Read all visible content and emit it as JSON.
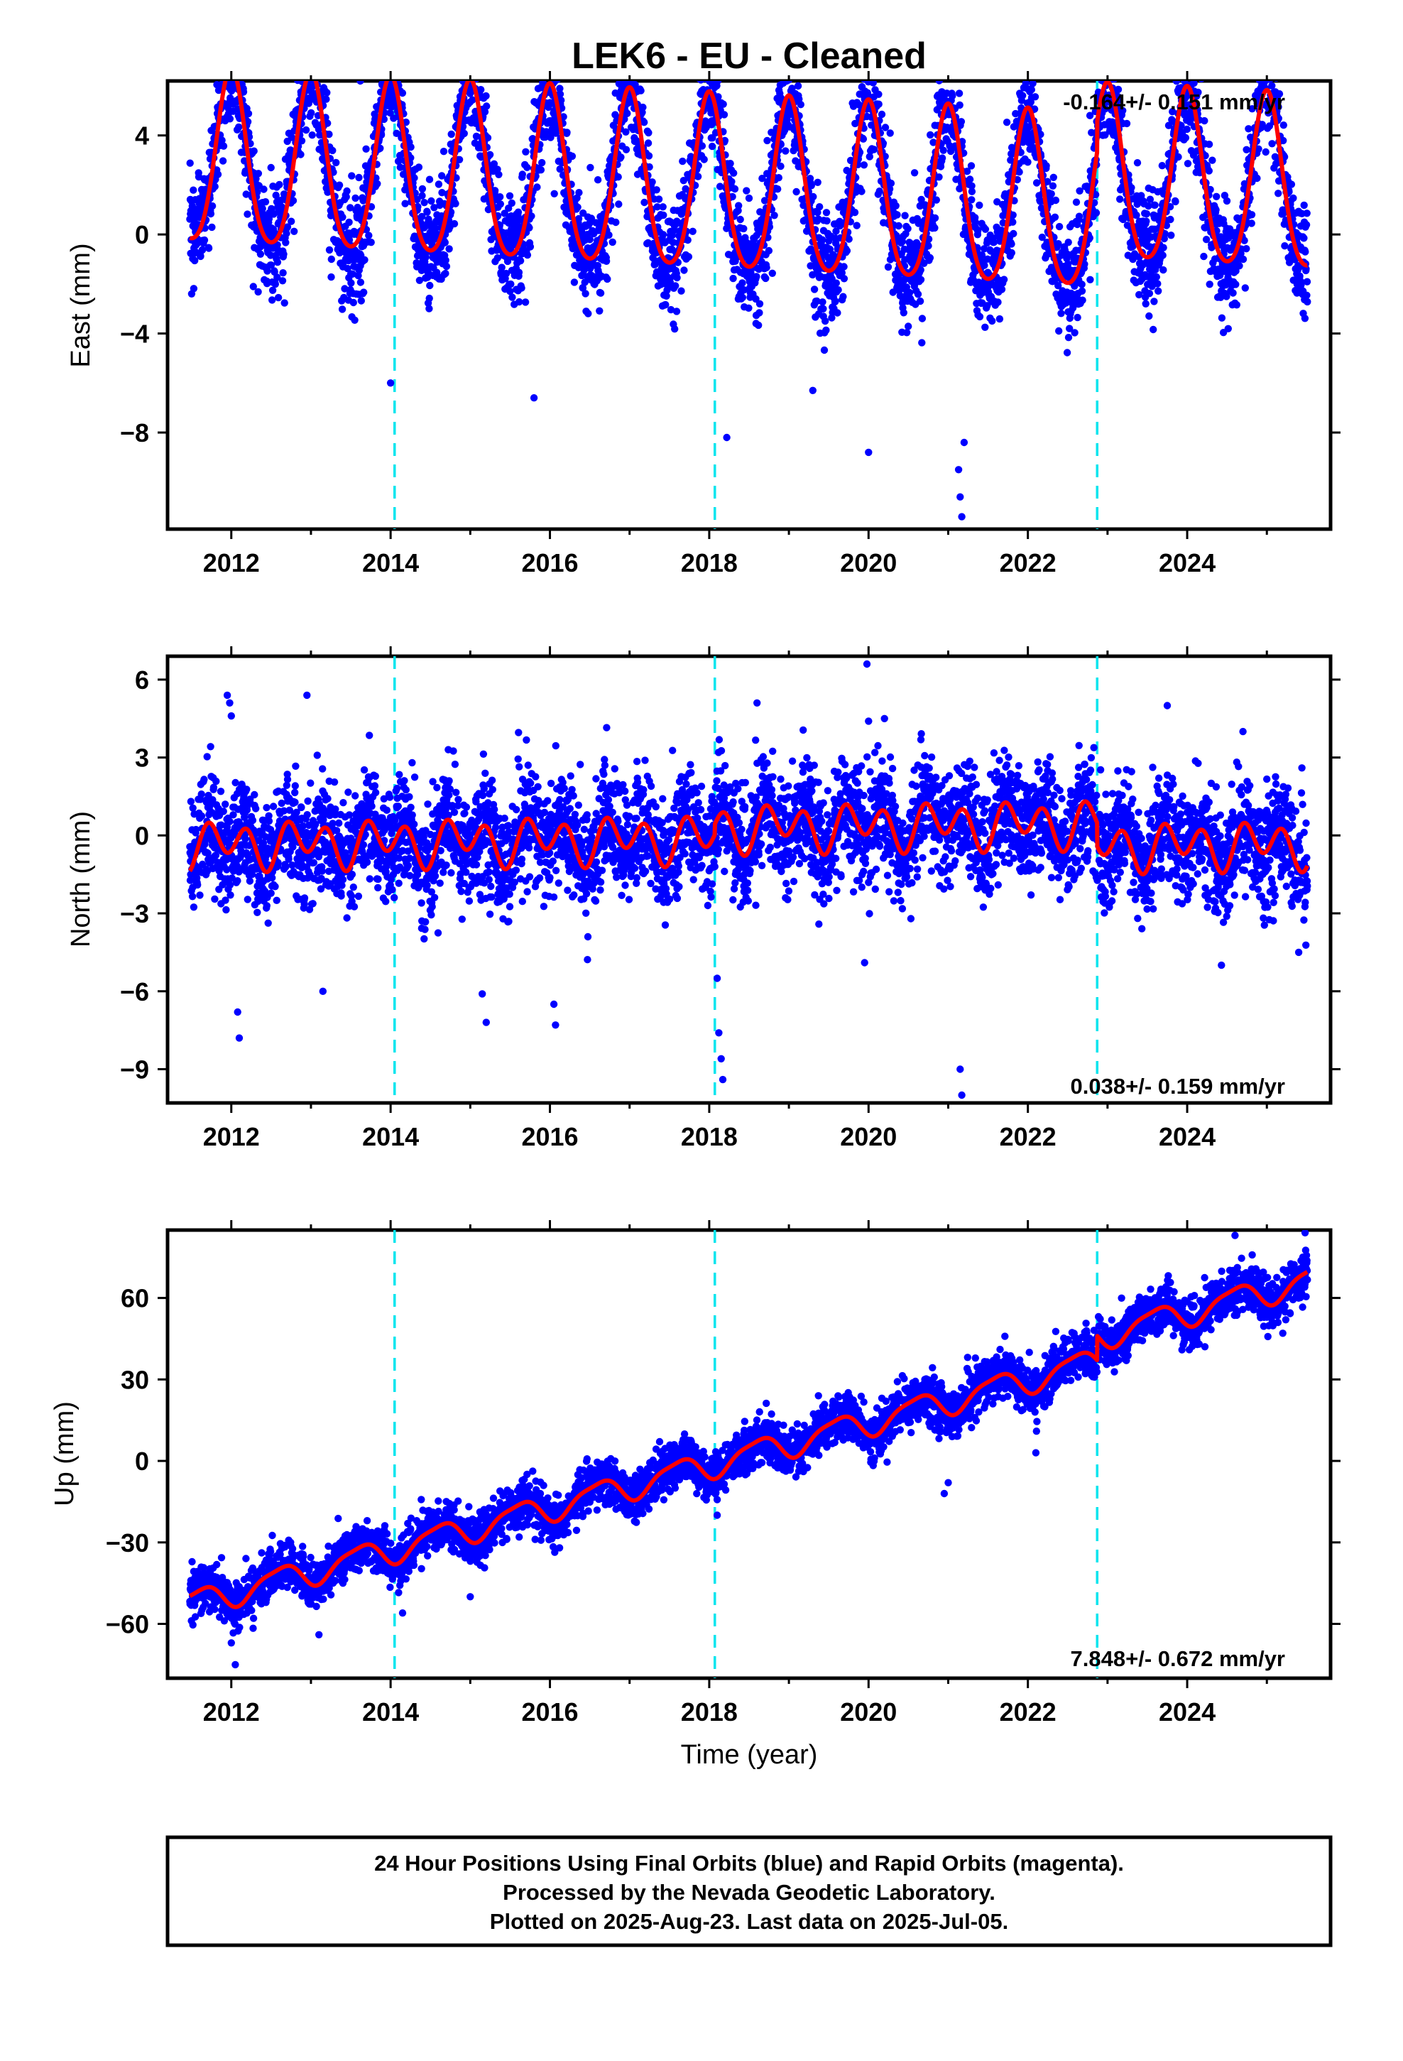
{
  "page": {
    "title": "LEK6  - EU - Cleaned",
    "xlabel": "Time (year)",
    "footer": [
      "24 Hour Positions Using Final Orbits (blue) and Rapid Orbits (magenta).",
      "Processed by the Nevada Geodetic Laboratory.",
      "Plotted on 2025-Aug-23. Last data on 2025-Jul-05."
    ]
  },
  "colors": {
    "points": "#0000ff",
    "model": "#ff0000",
    "events": "#00e5ee",
    "frame": "#000000"
  },
  "chart_data": [
    {
      "type": "scatter",
      "name": "east",
      "ylabel": "East (mm)",
      "rate_text": "-0.164+/- 0.151 mm/yr",
      "rate_position": "top-right",
      "xlim": [
        2011.2,
        2025.8
      ],
      "ylim": [
        -11.9,
        6.2
      ],
      "yticks": [
        4,
        0,
        -4,
        -8
      ],
      "ytick_labels": [
        "4",
        "0",
        "−4",
        "−8"
      ],
      "xticks": [
        2012,
        2014,
        2016,
        2018,
        2020,
        2022,
        2024
      ],
      "xtick_labels": [
        "2012",
        "2014",
        "2016",
        "2018",
        "2020",
        "2022",
        "2024"
      ],
      "event_lines": [
        2014.05,
        2018.07,
        2022.87
      ],
      "data_range": [
        2011.48,
        2025.51
      ],
      "model": {
        "offset": 1.7,
        "trend": -0.164,
        "ref_year": 2018.5,
        "annual_amp": 3.5,
        "annual_phase": 0.0,
        "semiannual_amp": 0.5,
        "semiannual_phase": 0.5,
        "steps": [
          {
            "year": 2014.05,
            "size": 0.0
          },
          {
            "year": 2018.07,
            "size": 0.0
          },
          {
            "year": 2022.87,
            "size": 1.2
          }
        ]
      },
      "noise": {
        "sigma": 1.1,
        "outliers": [
          [
            2016.02,
            5.3
          ],
          [
            2016.04,
            6.1
          ],
          [
            2016.06,
            4.6
          ],
          [
            2013.62,
            6.2
          ],
          [
            2021.13,
            -9.5
          ],
          [
            2021.15,
            -10.6
          ],
          [
            2021.17,
            -11.4
          ],
          [
            2021.2,
            -8.4
          ],
          [
            2020.0,
            -8.8
          ],
          [
            2019.3,
            -6.3
          ],
          [
            2014.0,
            -6.0
          ],
          [
            2018.22,
            -8.2
          ],
          [
            2015.8,
            -6.6
          ]
        ]
      }
    },
    {
      "type": "scatter",
      "name": "north",
      "ylabel": "North (mm)",
      "rate_text": "0.038+/- 0.159 mm/yr",
      "rate_position": "bottom-right",
      "xlim": [
        2011.2,
        2025.8
      ],
      "ylim": [
        -10.3,
        6.9
      ],
      "yticks": [
        6,
        3,
        0,
        -3,
        -6,
        -9
      ],
      "ytick_labels": [
        "6",
        "3",
        "0",
        "−3",
        "−6",
        "−9"
      ],
      "xticks": [
        2012,
        2014,
        2016,
        2018,
        2020,
        2022,
        2024
      ],
      "xtick_labels": [
        "2012",
        "2014",
        "2016",
        "2018",
        "2020",
        "2022",
        "2024"
      ],
      "event_lines": [
        2014.05,
        2018.07,
        2022.87
      ],
      "data_range": [
        2011.48,
        2025.51
      ],
      "model": {
        "offset": -0.1,
        "trend": 0.038,
        "ref_year": 2018.5,
        "annual_amp": 0.4,
        "annual_phase": 0.9,
        "semiannual_amp": 0.7,
        "semiannual_phase": 0.2,
        "steps": [
          {
            "year": 2014.05,
            "size": 0.0
          },
          {
            "year": 2018.07,
            "size": 0.4
          },
          {
            "year": 2022.87,
            "size": -0.9
          }
        ]
      },
      "noise": {
        "sigma": 1.05,
        "outliers": [
          [
            2011.95,
            5.4
          ],
          [
            2011.98,
            5.1
          ],
          [
            2012.0,
            4.6
          ],
          [
            2012.08,
            -6.8
          ],
          [
            2012.1,
            -7.8
          ],
          [
            2012.95,
            5.4
          ],
          [
            2013.15,
            -6.0
          ],
          [
            2016.05,
            -6.5
          ],
          [
            2016.07,
            -7.3
          ],
          [
            2015.15,
            -6.1
          ],
          [
            2015.2,
            -7.2
          ],
          [
            2018.12,
            -7.6
          ],
          [
            2018.15,
            -8.6
          ],
          [
            2018.17,
            -9.4
          ],
          [
            2018.1,
            -5.5
          ],
          [
            2018.6,
            5.1
          ],
          [
            2019.98,
            6.6
          ],
          [
            2020.2,
            4.5
          ],
          [
            2020.0,
            4.4
          ],
          [
            2021.15,
            -9.0
          ],
          [
            2021.17,
            -10.0
          ],
          [
            2023.75,
            5.0
          ],
          [
            2024.7,
            4.0
          ],
          [
            2025.4,
            -4.5
          ],
          [
            2019.95,
            -4.9
          ]
        ]
      }
    },
    {
      "type": "scatter",
      "name": "up",
      "ylabel": "Up (mm)",
      "rate_text": "7.848+/- 0.672 mm/yr",
      "rate_position": "bottom-right",
      "xlim": [
        2011.2,
        2025.8
      ],
      "ylim": [
        -80,
        85
      ],
      "yticks": [
        60,
        30,
        0,
        -30,
        -60
      ],
      "ytick_labels": [
        "60",
        "30",
        "0",
        "−30",
        "−60"
      ],
      "xticks": [
        2012,
        2014,
        2016,
        2018,
        2020,
        2022,
        2024
      ],
      "xtick_labels": [
        "2012",
        "2014",
        "2016",
        "2018",
        "2020",
        "2022",
        "2024"
      ],
      "event_lines": [
        2014.05,
        2018.07,
        2022.87
      ],
      "data_range": [
        2011.48,
        2025.51
      ],
      "model": {
        "offset": 2.6,
        "trend": 7.848,
        "ref_year": 2018.5,
        "annual_amp": 4.8,
        "annual_phase": 0.6,
        "semiannual_amp": 1.2,
        "semiannual_phase": 0.3,
        "steps": [
          {
            "year": 2014.05,
            "size": 0.0
          },
          {
            "year": 2018.07,
            "size": 0.0
          },
          {
            "year": 2022.87,
            "size": 9.0
          }
        ]
      },
      "noise": {
        "sigma": 4.2,
        "outliers": [
          [
            2012.05,
            -75
          ],
          [
            2012.0,
            -67
          ],
          [
            2013.1,
            -64
          ],
          [
            2014.15,
            -56
          ],
          [
            2015.0,
            -50
          ],
          [
            2018.1,
            -20
          ],
          [
            2020.95,
            -12
          ],
          [
            2021.0,
            -8
          ],
          [
            2022.1,
            3
          ],
          [
            2024.15,
            43
          ],
          [
            2025.2,
            47
          ],
          [
            2025.48,
            84
          ],
          [
            2024.6,
            83
          ]
        ]
      }
    }
  ]
}
